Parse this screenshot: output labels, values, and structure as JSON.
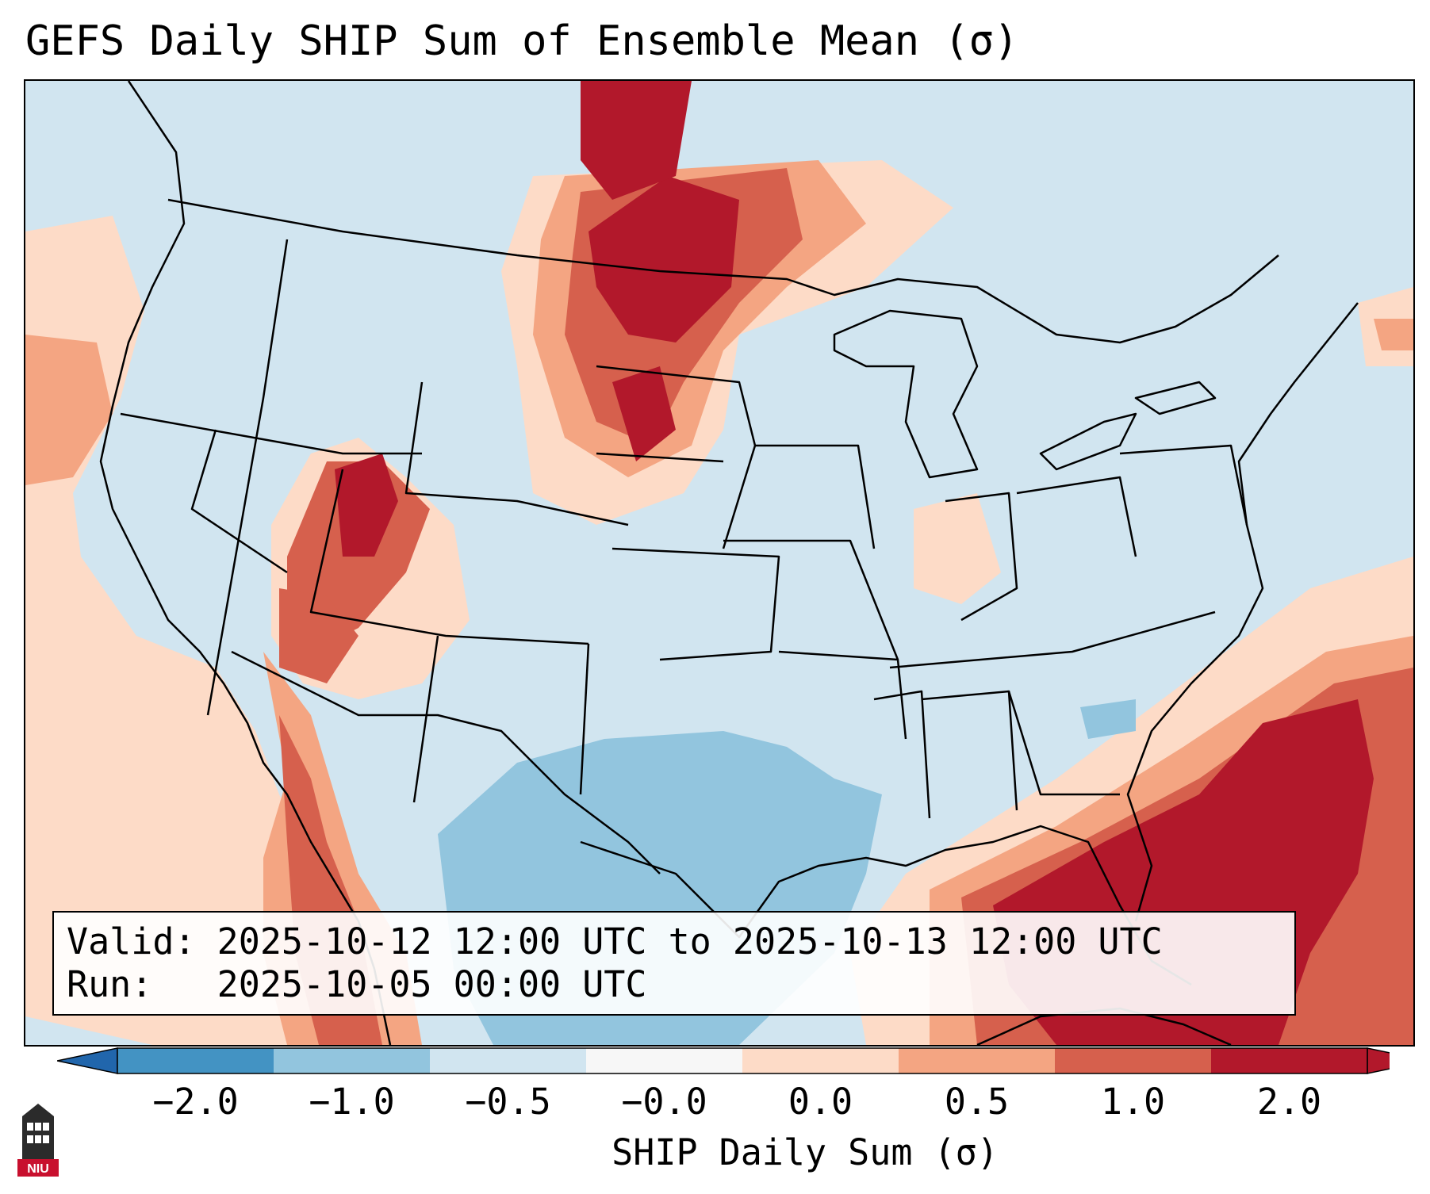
{
  "title": "GEFS Daily SHIP Sum of Ensemble Mean (σ)",
  "info": {
    "valid_line": "Valid: 2025-10-12 12:00 UTC to 2025-10-13 12:00 UTC",
    "run_line": "Run:   2025-10-05 00:00 UTC"
  },
  "colorbar": {
    "label": "SHIP Daily Sum (σ)",
    "ticks": [
      "−2.0",
      "−1.0",
      "−0.5",
      "−0.0",
      "0.0",
      "0.5",
      "1.0",
      "2.0"
    ],
    "colors": [
      "#4393c3",
      "#92c5de",
      "#d1e5f0",
      "#f7f7f7",
      "#fddbc7",
      "#f4a582",
      "#d6604d",
      "#b2182b"
    ],
    "extend": "both"
  },
  "logo": {
    "text": "NIU",
    "icon": "university-tower-icon",
    "color": "#c8102e"
  },
  "map": {
    "projection": "lambert-conformal",
    "region": "CONUS",
    "background_color": "#d1e5f0"
  }
}
